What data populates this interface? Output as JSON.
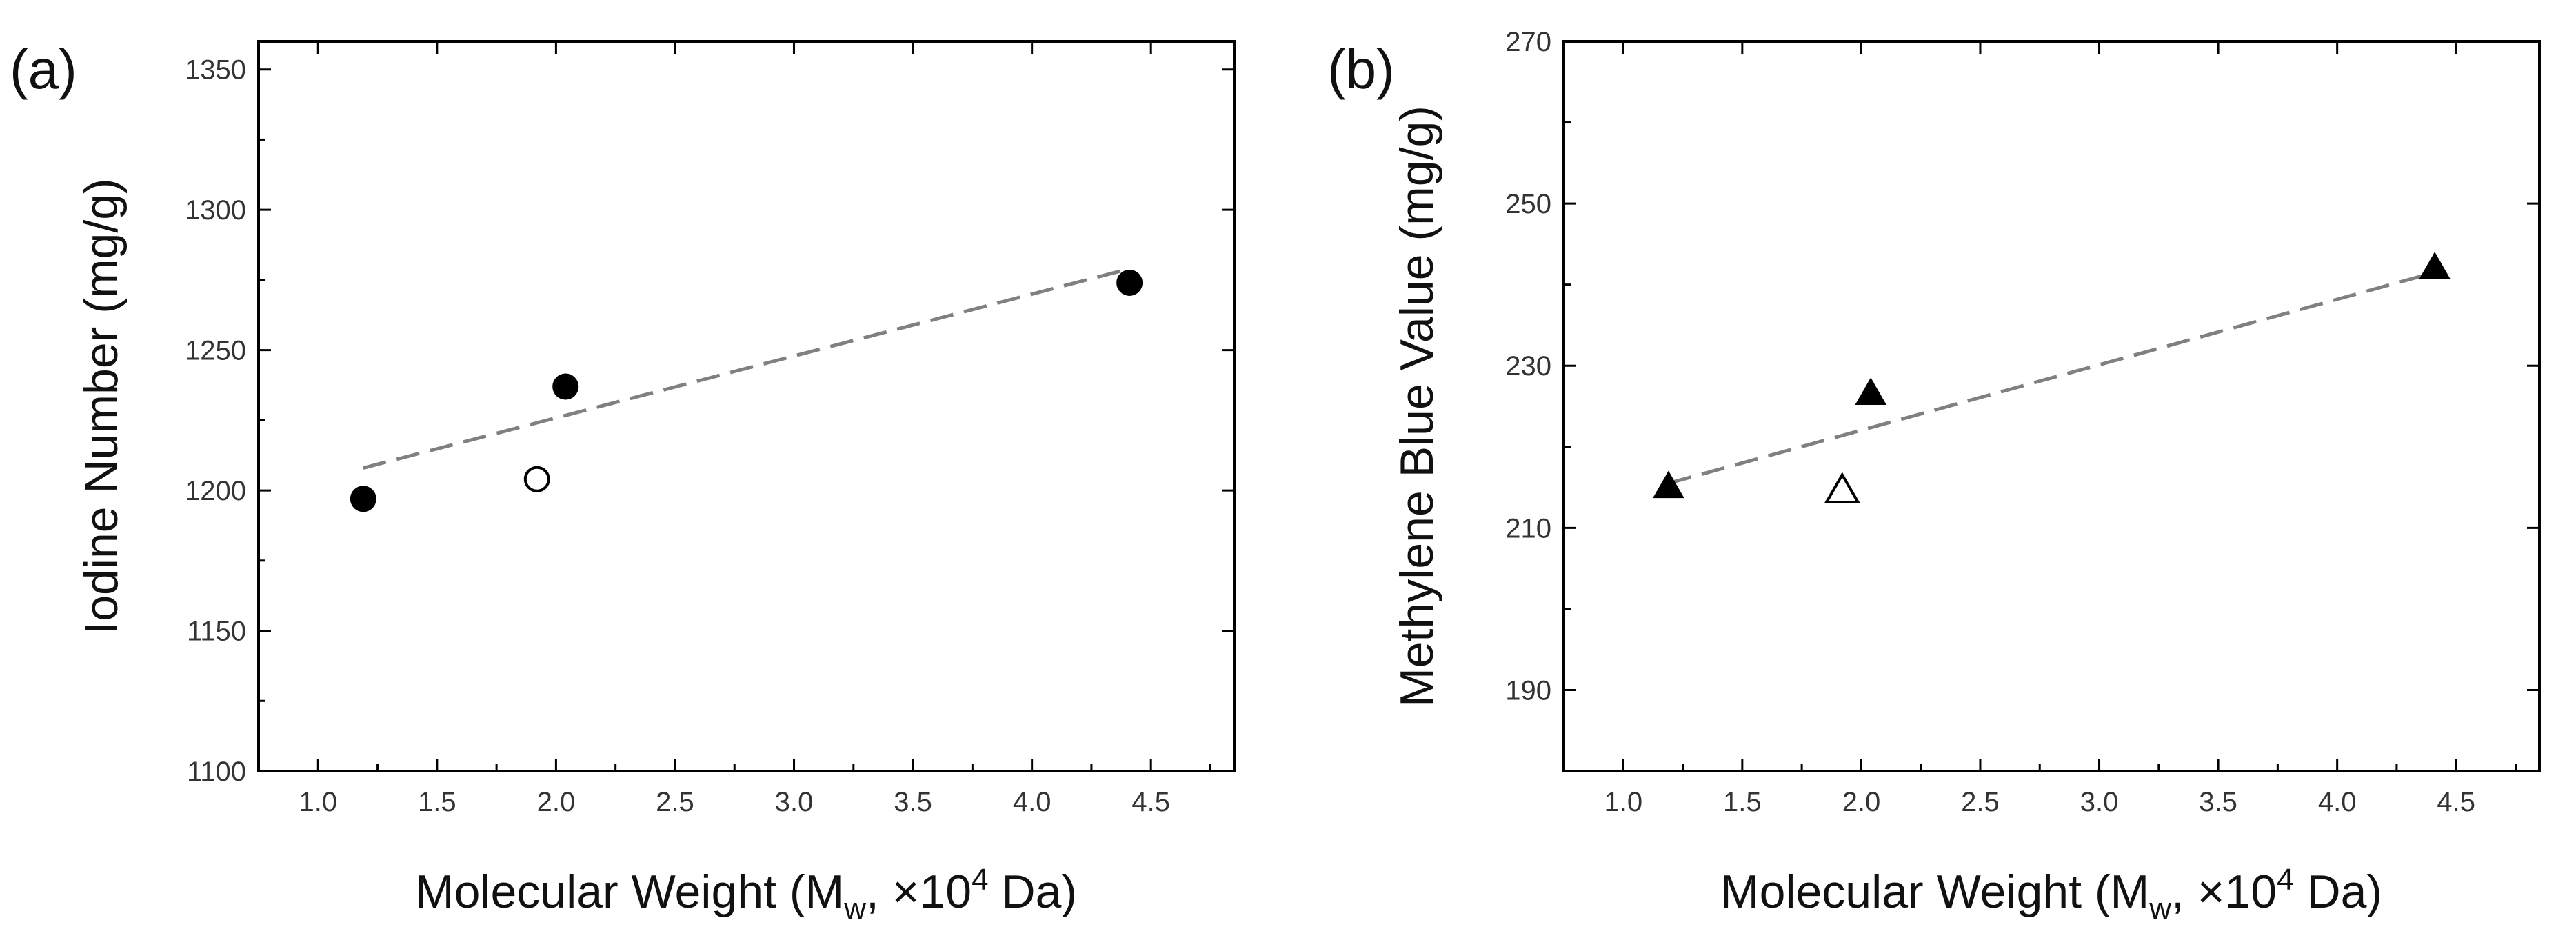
{
  "chart_data": [
    {
      "type": "scatter",
      "panel_label": "(a)",
      "title": "",
      "xlabel": {
        "main": "Molecular Weight (M",
        "sub": "w",
        "mid": ", ×10",
        "sup": "4",
        "end": " Da)"
      },
      "ylabel": "Iodine Number (mg/g)",
      "xlim": [
        0.75,
        4.85
      ],
      "ylim": [
        1100,
        1360
      ],
      "xticks": [
        1.0,
        1.5,
        2.0,
        2.5,
        3.0,
        3.5,
        4.0,
        4.5
      ],
      "xtick_labels": [
        "1.0",
        "1.5",
        "2.0",
        "2.5",
        "3.0",
        "3.5",
        "4.0",
        "4.5"
      ],
      "yticks": [
        1100,
        1150,
        1200,
        1250,
        1300,
        1350
      ],
      "ytick_labels": [
        "1100",
        "1150",
        "1200",
        "1250",
        "1300",
        "1350"
      ],
      "series": [
        {
          "name": "filled",
          "marker": "circle",
          "filled": true,
          "color": "#000000",
          "x": [
            1.19,
            2.04,
            4.41
          ],
          "y": [
            1197,
            1237,
            1274
          ]
        },
        {
          "name": "open",
          "marker": "circle",
          "filled": false,
          "color": "#000000",
          "x": [
            1.92
          ],
          "y": [
            1204
          ]
        }
      ],
      "fit_line": {
        "x": [
          1.19,
          4.41
        ],
        "y": [
          1208,
          1279
        ],
        "style": "dashed",
        "color": "#808080"
      }
    },
    {
      "type": "scatter",
      "panel_label": "(b)",
      "title": "",
      "xlabel": {
        "main": "Molecular Weight (M",
        "sub": "w",
        "mid": ", ×10",
        "sup": "4",
        "end": " Da)"
      },
      "ylabel": "Methylene Blue Value (mg/g)",
      "xlim": [
        0.75,
        4.85
      ],
      "ylim": [
        180,
        270
      ],
      "xticks": [
        1.0,
        1.5,
        2.0,
        2.5,
        3.0,
        3.5,
        4.0,
        4.5
      ],
      "xtick_labels": [
        "1.0",
        "1.5",
        "2.0",
        "2.5",
        "3.0",
        "3.5",
        "4.0",
        "4.5"
      ],
      "yticks": [
        190,
        210,
        230,
        250,
        270
      ],
      "ytick_labels": [
        "190",
        "210",
        "230",
        "250",
        "270"
      ],
      "series": [
        {
          "name": "filled",
          "marker": "triangle",
          "filled": true,
          "color": "#000000",
          "x": [
            1.19,
            2.04,
            4.41
          ],
          "y": [
            215,
            226.5,
            242
          ]
        },
        {
          "name": "open",
          "marker": "triangle",
          "filled": false,
          "color": "#000000",
          "x": [
            1.92
          ],
          "y": [
            214.5
          ]
        }
      ],
      "fit_line": {
        "x": [
          1.19,
          4.41
        ],
        "y": [
          215.5,
          241.5
        ],
        "style": "dashed",
        "color": "#808080"
      }
    }
  ]
}
